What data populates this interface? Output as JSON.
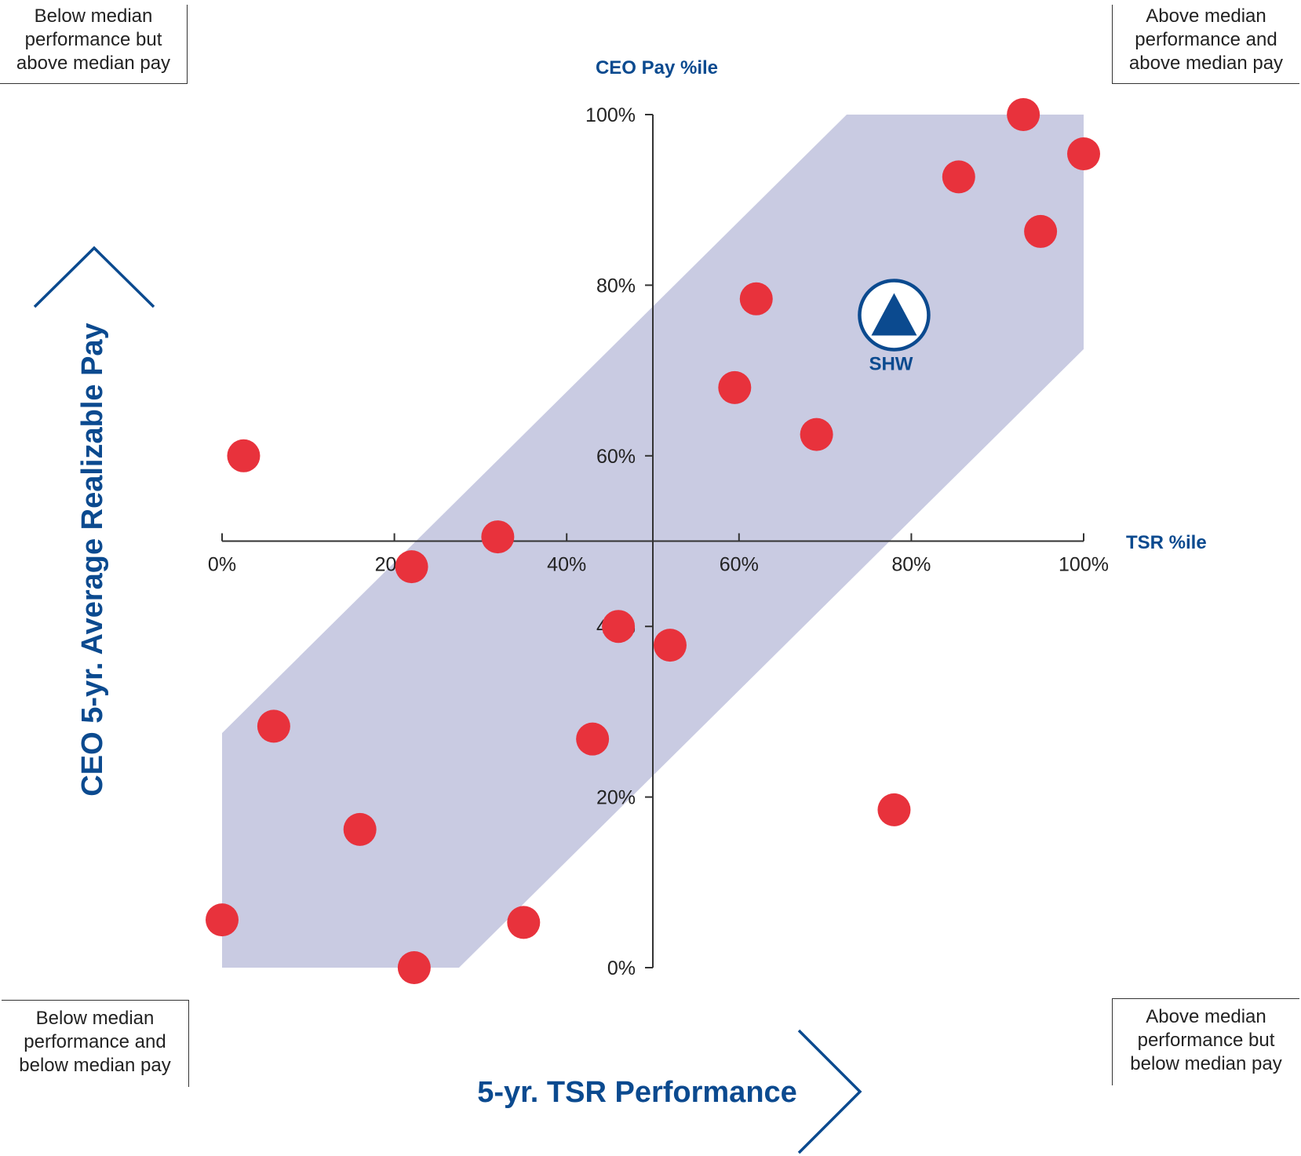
{
  "corners": {
    "top_left": [
      "Below median",
      "performance but",
      "above median pay"
    ],
    "top_right": [
      "Above median",
      "performance and",
      "above median pay"
    ],
    "bottom_left": [
      "Below median",
      "performance and",
      "below median pay"
    ],
    "bottom_right": [
      "Above median",
      "performance but",
      "below median pay"
    ]
  },
  "colors": {
    "point": "#e8323c",
    "band": "#c9cbe2",
    "accent": "#0b4a8f",
    "axis": "#333333"
  },
  "icons": {
    "y_arrow": "up-arrow-outline-icon",
    "x_arrow": "right-arrow-outline-icon",
    "company_marker": "circled-triangle-icon"
  },
  "chart_data": {
    "type": "scatter",
    "xlabel": "5-yr. TSR Performance",
    "ylabel": "CEO 5-yr. Average Realizable Pay",
    "x_axis_caption": "TSR %ile",
    "y_axis_caption": "CEO Pay %ile",
    "xlim": [
      0,
      100
    ],
    "ylim": [
      0,
      100
    ],
    "x_ticks": [
      "0%",
      "20%",
      "40%",
      "60%",
      "80%",
      "100%"
    ],
    "y_ticks": [
      "0%",
      "20%",
      "40%",
      "60%",
      "80%",
      "100%"
    ],
    "axes_cross_at": [
      50,
      50
    ],
    "grid": false,
    "band_polygon": [
      [
        0,
        0
      ],
      [
        27.5,
        0
      ],
      [
        100,
        72.5
      ],
      [
        100,
        100
      ],
      [
        72.5,
        100
      ],
      [
        0,
        27.5
      ]
    ],
    "points": [
      {
        "x": 2.5,
        "y": 60
      },
      {
        "x": 22,
        "y": 47
      },
      {
        "x": 32,
        "y": 50.5
      },
      {
        "x": 6,
        "y": 28.3
      },
      {
        "x": 16,
        "y": 16.2
      },
      {
        "x": 0,
        "y": 5.6
      },
      {
        "x": 22.3,
        "y": 0
      },
      {
        "x": 35,
        "y": 5.3
      },
      {
        "x": 43,
        "y": 26.8
      },
      {
        "x": 46,
        "y": 40
      },
      {
        "x": 52,
        "y": 37.8
      },
      {
        "x": 59.5,
        "y": 68
      },
      {
        "x": 62,
        "y": 78.4
      },
      {
        "x": 69,
        "y": 62.5
      },
      {
        "x": 78,
        "y": 18.5
      },
      {
        "x": 85.5,
        "y": 92.7
      },
      {
        "x": 93,
        "y": 100
      },
      {
        "x": 95,
        "y": 86.3
      },
      {
        "x": 100,
        "y": 95.4
      }
    ],
    "highlight": {
      "label": "SHW",
      "x": 78,
      "y": 76.5
    }
  }
}
